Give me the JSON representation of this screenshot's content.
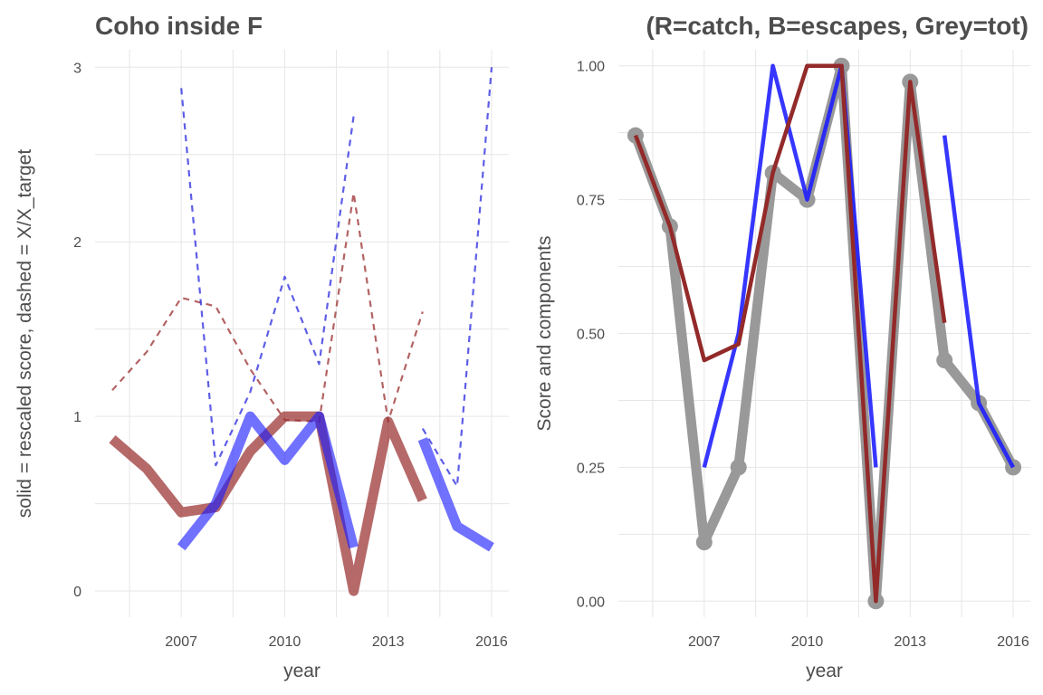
{
  "chart_data": [
    {
      "type": "line",
      "title": "Coho inside F",
      "xlabel": "year",
      "ylabel": "solid = rescaled score, dashed = X/X_target",
      "xlim": [
        2004.5,
        2016.5
      ],
      "ylim": [
        -0.15,
        3.1
      ],
      "x_ticks": [
        2007,
        2010,
        2013,
        2016
      ],
      "y_ticks": [
        0,
        1,
        2,
        3
      ],
      "grid": true,
      "series": [
        {
          "color": "#9a2f2f",
          "style": "dashed",
          "x": [
            2005,
            2006,
            2007,
            2008,
            2009,
            2010,
            2011,
            2012,
            2013,
            2014
          ],
          "y": [
            1.15,
            1.37,
            1.68,
            1.63,
            1.27,
            0.98,
            0.97,
            2.28,
            0.97,
            1.6
          ]
        },
        {
          "color": "#1a1add",
          "style": "dashed",
          "x": [
            2007,
            2008,
            2009,
            2010,
            2011,
            2012,
            null,
            2014,
            2015,
            2016
          ],
          "y": [
            2.88,
            0.72,
            1.14,
            1.8,
            1.3,
            2.72,
            null,
            0.93,
            0.6,
            3.0
          ]
        },
        {
          "color": "#9a2f2f",
          "style": "solid",
          "x": [
            2005,
            2006,
            2007,
            2008,
            2009,
            2010,
            2011,
            2012,
            2013,
            2014
          ],
          "y": [
            0.87,
            0.7,
            0.45,
            0.48,
            0.8,
            1.0,
            1.0,
            0.0,
            0.97,
            0.52
          ]
        },
        {
          "color": "#1a1aff",
          "style": "solid",
          "x": [
            2007,
            2008,
            2009,
            2010,
            2011,
            2012,
            null,
            2014,
            2015,
            2016
          ],
          "y": [
            0.25,
            0.5,
            1.0,
            0.75,
            1.0,
            0.25,
            null,
            0.87,
            0.37,
            0.25
          ]
        }
      ]
    },
    {
      "type": "line",
      "title": "(R=catch, B=escapes, Grey=tot)",
      "xlabel": "year",
      "ylabel": "Score and components",
      "xlim": [
        2004.5,
        2016.5
      ],
      "ylim": [
        -0.03,
        1.03
      ],
      "x_ticks": [
        2007,
        2010,
        2013,
        2016
      ],
      "y_ticks": [
        0.0,
        0.25,
        0.5,
        0.75,
        1.0
      ],
      "y_tick_labels": [
        "0.00",
        "0.25",
        "0.50",
        "0.75",
        "1.00"
      ],
      "grid": true,
      "series": [
        {
          "color": "#999999",
          "style": "solid-with-points",
          "x": [
            2005,
            2006,
            2007,
            2008,
            2009,
            2010,
            2011,
            2012,
            2013,
            2014,
            2015,
            2016
          ],
          "y": [
            0.87,
            0.7,
            0.11,
            0.25,
            0.8,
            0.75,
            1.0,
            0.0,
            0.97,
            0.45,
            0.37,
            0.25
          ]
        },
        {
          "color": "#1a1aff",
          "style": "solid",
          "x": [
            2007,
            2008,
            2009,
            2010,
            2011,
            2012,
            null,
            2014,
            2015,
            2016
          ],
          "y": [
            0.25,
            0.5,
            1.0,
            0.75,
            1.0,
            0.25,
            null,
            0.87,
            0.37,
            0.25
          ]
        },
        {
          "color": "#932a2a",
          "style": "solid",
          "x": [
            2005,
            2006,
            2007,
            2008,
            2009,
            2010,
            2011,
            2012,
            2013,
            2014
          ],
          "y": [
            0.87,
            0.7,
            0.45,
            0.48,
            0.8,
            1.0,
            1.0,
            0.0,
            0.97,
            0.52
          ]
        }
      ]
    }
  ]
}
